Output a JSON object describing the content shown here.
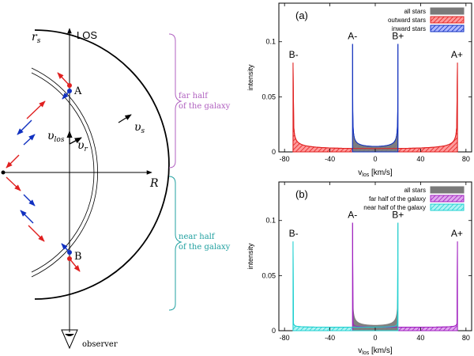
{
  "diagram": {
    "los_label": "LOS",
    "rs_label": "r",
    "rs_sub": "s",
    "point_a": "A",
    "point_b": "B",
    "vs_label": "υ",
    "vs_sub": "s",
    "vlos_label": "υ",
    "vlos_sub": "los",
    "vr_label": "υ",
    "vr_sub": "r",
    "r_axis_label": "R",
    "far_half_line1": "far half",
    "far_half_line2": "of the galaxy",
    "near_half_line1": "near half",
    "near_half_line2": "of the galaxy",
    "observer_label": "observer",
    "colors": {
      "far_brace": "#b060c0",
      "near_brace": "#20a0a0",
      "outward": "#e02020",
      "inward": "#1030c0",
      "point": "#1030c0"
    }
  },
  "chart_data": [
    {
      "type": "area",
      "panel_label": "(a)",
      "xlabel": "v",
      "xlabel_sub": "los",
      "xlabel_unit": " [km/s]",
      "ylabel": "intensity",
      "xlim": [
        -85,
        85
      ],
      "ylim": [
        0,
        0.135
      ],
      "xticks": [
        -80,
        -40,
        0,
        40,
        80
      ],
      "xtick_labels": [
        "-80",
        "-40",
        "0",
        "40",
        "80"
      ],
      "yticks": [
        0,
        0.05,
        0.1
      ],
      "ytick_labels": [
        "0",
        "0.05",
        "0.1"
      ],
      "peak_labels": [
        {
          "text": "B-",
          "x": -72,
          "y": 0.081
        },
        {
          "text": "A-",
          "x": -20,
          "y": 0.098
        },
        {
          "text": "B+",
          "x": 20,
          "y": 0.098
        },
        {
          "text": "A+",
          "x": 72,
          "y": 0.081
        }
      ],
      "legend_position": "top-right",
      "series": [
        {
          "name": "all stars",
          "color": "#7a7a7a",
          "style": "solid",
          "components": [
            "outer",
            "inner"
          ]
        },
        {
          "name": "outward stars",
          "color": "#e02020",
          "style": "hatch",
          "components": [
            "outer"
          ]
        },
        {
          "name": "inward stars",
          "color": "#1030c0",
          "style": "hatch",
          "components": [
            "inner"
          ]
        }
      ],
      "components": {
        "outer": {
          "range": [
            -72.5,
            72.5
          ],
          "peak": 0.081,
          "floor": 0.003
        },
        "inner": {
          "range": [
            -20,
            20
          ],
          "peak": 0.098,
          "floor": 0.005
        }
      }
    },
    {
      "type": "area",
      "panel_label": "(b)",
      "xlabel": "v",
      "xlabel_sub": "los",
      "xlabel_unit": " [km/s]",
      "ylabel": "intensity",
      "xlim": [
        -85,
        85
      ],
      "ylim": [
        0,
        0.135
      ],
      "xticks": [
        -80,
        -40,
        0,
        40,
        80
      ],
      "xtick_labels": [
        "-80",
        "-40",
        "0",
        "40",
        "80"
      ],
      "yticks": [
        0,
        0.05,
        0.1
      ],
      "ytick_labels": [
        "0",
        "0.05",
        "0.1"
      ],
      "peak_labels": [
        {
          "text": "B-",
          "x": -72,
          "y": 0.081
        },
        {
          "text": "A-",
          "x": -20,
          "y": 0.098
        },
        {
          "text": "B+",
          "x": 20,
          "y": 0.098
        },
        {
          "text": "A+",
          "x": 72,
          "y": 0.081
        }
      ],
      "legend_position": "top-right",
      "series": [
        {
          "name": "all stars",
          "color": "#7a7a7a",
          "style": "solid",
          "components": [
            "outer",
            "inner"
          ]
        },
        {
          "name": "far half of the galaxy",
          "color": "#a020c0",
          "style": "hatch",
          "components": [
            "far"
          ]
        },
        {
          "name": "near half of the galaxy",
          "color": "#20d0d0",
          "style": "hatch",
          "components": [
            "near"
          ]
        }
      ],
      "components": {
        "outer": {
          "range": [
            -72.5,
            72.5
          ],
          "peak": 0.081,
          "floor": 0.003
        },
        "inner": {
          "range": [
            -20,
            20
          ],
          "peak": 0.098,
          "floor": 0.005
        },
        "far": {
          "type": "half",
          "range": [
            -20,
            72.5
          ],
          "peak_left": 0.098,
          "peak_right": 0.081,
          "floor": 0.004
        },
        "near": {
          "type": "half",
          "range": [
            -72.5,
            20
          ],
          "peak_left": 0.081,
          "peak_right": 0.098,
          "floor": 0.004
        }
      }
    }
  ]
}
